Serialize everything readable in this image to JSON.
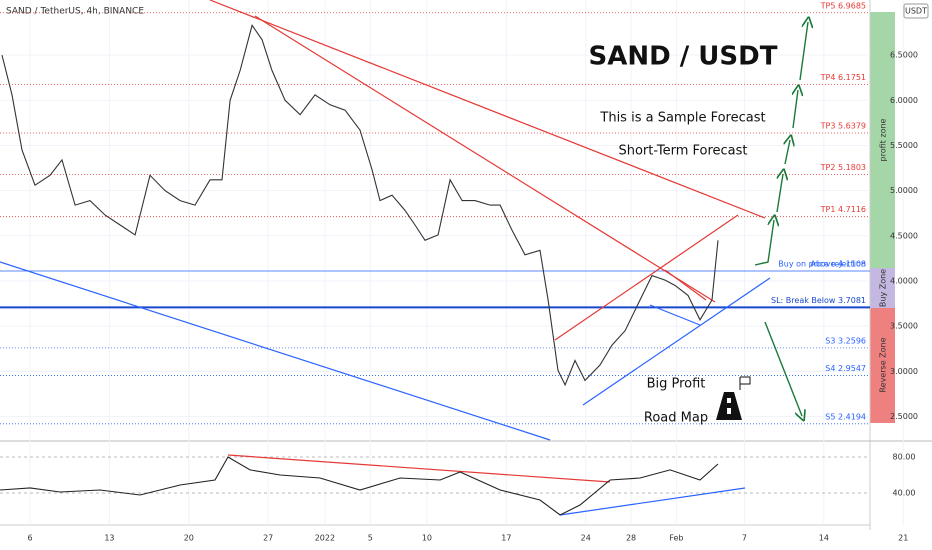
{
  "chart_data": [
    {
      "type": "line",
      "title": "SAND / TetherUS, 4h, BINANCE",
      "currency": "USDT",
      "headline": "SAND / USDT",
      "annotations": [
        "This is a Sample Forecast",
        "Short-Term Forecast",
        "Buy on price rejection",
        "Big Profit",
        "Road Map"
      ],
      "zones": [
        "profit zone",
        "Buy Zone",
        "Reverse Zone"
      ],
      "x": [
        3.53,
        4.41,
        5.29,
        6.44,
        7.76,
        8.82,
        9.97,
        11.29,
        12.61,
        13.94,
        15.26,
        16.58,
        17.9,
        19.23,
        20.55,
        21.87,
        22.93,
        23.64,
        24.52,
        25.58,
        26.46,
        27.34,
        28.49,
        29.81,
        31.13,
        32.46,
        33.78,
        35.1,
        36.16,
        36.86,
        37.92,
        39.07,
        39.95,
        40.83,
        41.98,
        43.04,
        44.1,
        45.24,
        46.56,
        47.45,
        48.51,
        49.65,
        50.97,
        51.68,
        52.56,
        53.18,
        54.06,
        54.94,
        56.26,
        57.32,
        58.47,
        59.79,
        60.85,
        62.0,
        62.88,
        64.02,
        65.08,
        66.14,
        66.67
      ],
      "series": [
        {
          "color": "#333333",
          "values": [
            6.5,
            6.06,
            5.45,
            5.06,
            5.17,
            5.34,
            4.84,
            4.89,
            4.73,
            4.62,
            4.51,
            5.17,
            5.0,
            4.89,
            4.84,
            5.12,
            5.12,
            6.0,
            6.33,
            6.83,
            6.67,
            6.33,
            6.0,
            5.84,
            6.06,
            5.95,
            5.89,
            5.67,
            5.23,
            4.89,
            4.95,
            4.78,
            4.62,
            4.45,
            4.51,
            5.12,
            4.89,
            4.89,
            4.84,
            4.84,
            4.56,
            4.29,
            4.34,
            3.79,
            3.01,
            2.85,
            3.12,
            2.9,
            3.07,
            3.29,
            3.45,
            3.79,
            4.06,
            4.01,
            3.95,
            3.84,
            3.57,
            3.79,
            4.45
          ]
        }
      ],
      "levels": [
        {
          "label": "TP5 6.9685",
          "value": 6.9685,
          "color": "#e53935",
          "style": "dotted"
        },
        {
          "label": "TP4 6.1751",
          "value": 6.1751,
          "color": "#e53935",
          "style": "dotted"
        },
        {
          "label": "TP3 5.6379",
          "value": 5.6379,
          "color": "#e53935",
          "style": "dotted"
        },
        {
          "label": "TP2 5.1803",
          "value": 5.1803,
          "color": "#e53935",
          "style": "dotted"
        },
        {
          "label": "TP1 4.7116",
          "value": 4.7116,
          "color": "#e53935",
          "style": "dotted"
        },
        {
          "label": "Above 4.1108",
          "value": 4.1108,
          "color": "#2962ff",
          "style": "solid"
        },
        {
          "label": "SL: Break Below 3.7081",
          "value": 3.7081,
          "color": "#1848cc",
          "style": "thick"
        },
        {
          "label": "S3 3.2596",
          "value": 3.2596,
          "color": "#2962ff",
          "style": "dotted"
        },
        {
          "label": "S4 2.9547",
          "value": 2.9547,
          "color": "#2962ff",
          "style": "dotted"
        },
        {
          "label": "S5 2.4194",
          "value": 2.4194,
          "color": "#2962ff",
          "style": "dotted"
        }
      ],
      "xlim": [
        3.35,
        80.07
      ],
      "xticks": [
        {
          "value": 6,
          "label": "6"
        },
        {
          "value": 13,
          "label": "13"
        },
        {
          "value": 20,
          "label": "20"
        },
        {
          "value": 27,
          "label": "27"
        },
        {
          "value": 32,
          "label": "2022"
        },
        {
          "value": 36,
          "label": "5"
        },
        {
          "value": 41,
          "label": "10"
        },
        {
          "value": 48,
          "label": "17"
        },
        {
          "value": 55,
          "label": "24"
        },
        {
          "value": 59,
          "label": "28"
        },
        {
          "value": 63,
          "label": "Feb"
        },
        {
          "value": 69,
          "label": "7"
        },
        {
          "value": 76,
          "label": "14"
        },
        {
          "value": 83,
          "label": "21"
        }
      ],
      "ylim": [
        2.24,
        7.11
      ],
      "yticks": [
        {
          "value": 6.5,
          "label": "6.5000"
        },
        {
          "value": 6,
          "label": "6.0000"
        },
        {
          "value": 5.5,
          "label": "5.5000"
        },
        {
          "value": 5,
          "label": "5.0000"
        },
        {
          "value": 4.5,
          "label": "4.5000"
        },
        {
          "value": 4,
          "label": "4.0000"
        },
        {
          "value": 3.5,
          "label": "3.5000"
        },
        {
          "value": 3,
          "label": "3.0000"
        },
        {
          "value": 2.5,
          "label": "2.5000"
        }
      ],
      "grid": true
    },
    {
      "type": "line",
      "x": [
        3.35,
        6,
        8.65,
        12.17,
        15.7,
        19.23,
        22.31,
        23.46,
        25.4,
        28.05,
        31.57,
        35.1,
        38.63,
        42.16,
        43.92,
        47.45,
        50.97,
        52.74,
        54.5,
        57.15,
        59.79,
        62.44,
        65.08,
        66.67
      ],
      "series": [
        {
          "color": "#222222",
          "values": [
            43.3,
            45.6,
            41.1,
            43.3,
            37.8,
            48.9,
            54.4,
            80,
            65.6,
            60,
            56.7,
            43.3,
            56.7,
            54.4,
            63.3,
            43.3,
            32.2,
            15.6,
            26.7,
            54.4,
            56.7,
            65.6,
            54.4,
            72.2
          ]
        }
      ],
      "xlim": [
        3.35,
        80.07
      ],
      "ylim": [
        10,
        93.3
      ],
      "yticks": [
        {
          "value": 80,
          "label": "80.00"
        },
        {
          "value": 40,
          "label": "40.00"
        }
      ]
    }
  ]
}
